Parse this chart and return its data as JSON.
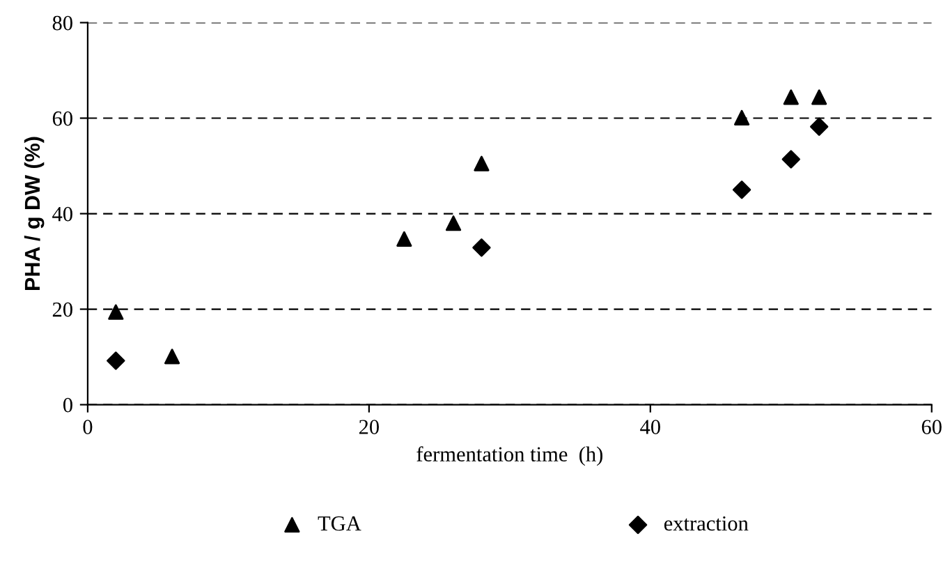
{
  "chart_data": {
    "type": "scatter",
    "xlabel": "fermentation time  (h)",
    "ylabel": "PHA / g DW (%)",
    "xlim": [
      0,
      60
    ],
    "xticks": [
      0,
      20,
      40,
      60
    ],
    "ylim": [
      0,
      80
    ],
    "yticks": [
      0,
      20,
      40,
      60,
      80
    ],
    "grid": "y",
    "legend": "bottom",
    "series": [
      {
        "name": "TGA",
        "color": "#000000",
        "marker": "triangle",
        "x": [
          2,
          6,
          22.5,
          26,
          28,
          46.5,
          50,
          52
        ],
        "values": [
          19.4,
          10.1,
          34.7,
          38,
          50.5,
          60.1,
          64.4,
          64.4
        ]
      },
      {
        "name": "extraction",
        "color": "#000000",
        "marker": "diamond",
        "x": [
          2,
          28,
          46.5,
          50,
          52
        ],
        "values": [
          9.2,
          32.9,
          45,
          51.4,
          58.2
        ]
      }
    ]
  }
}
